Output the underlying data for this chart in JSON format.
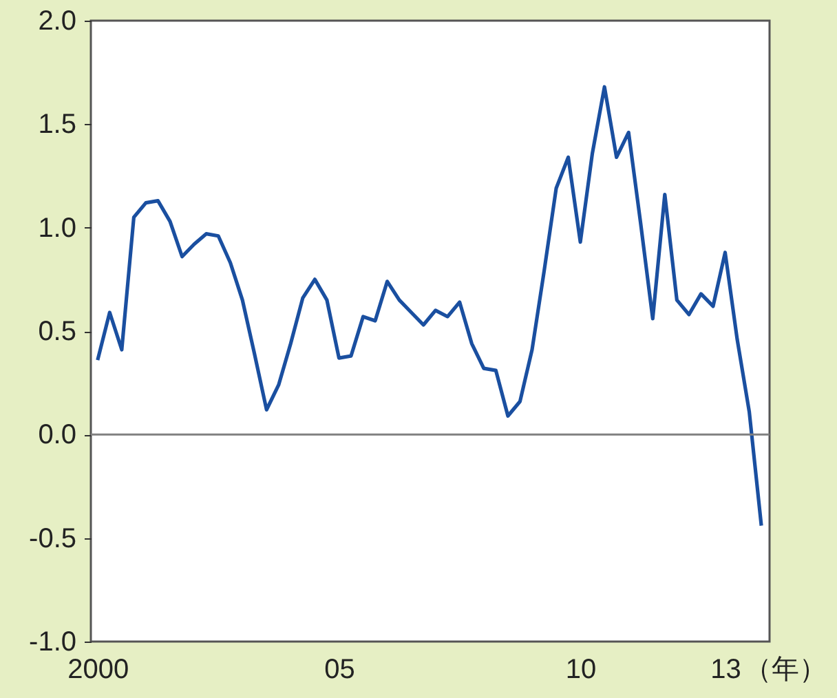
{
  "chart_data": {
    "type": "line",
    "x": [
      2000,
      2000.25,
      2000.5,
      2000.75,
      2001,
      2001.25,
      2001.5,
      2001.75,
      2002,
      2002.25,
      2002.5,
      2002.75,
      2003,
      2003.25,
      2003.5,
      2003.75,
      2004,
      2004.25,
      2004.5,
      2004.75,
      2005,
      2005.25,
      2005.5,
      2005.75,
      2006,
      2006.25,
      2006.5,
      2006.75,
      2007,
      2007.25,
      2007.5,
      2007.75,
      2008,
      2008.25,
      2008.5,
      2008.75,
      2009,
      2009.25,
      2009.5,
      2009.75,
      2010,
      2010.25,
      2010.5,
      2010.75,
      2011,
      2011.25,
      2011.5,
      2011.75,
      2012,
      2012.25,
      2012.5,
      2012.75,
      2013,
      2013.25,
      2013.5,
      2013.75
    ],
    "series": [
      {
        "color": "#1a4fa0",
        "values": [
          0.36,
          0.59,
          0.41,
          1.05,
          1.12,
          1.13,
          1.03,
          0.86,
          0.92,
          0.97,
          0.96,
          0.83,
          0.65,
          0.39,
          0.12,
          0.24,
          0.44,
          0.66,
          0.75,
          0.65,
          0.37,
          0.38,
          0.57,
          0.55,
          0.74,
          0.65,
          0.59,
          0.53,
          0.6,
          0.57,
          0.64,
          0.44,
          0.32,
          0.31,
          0.09,
          0.16,
          0.41,
          0.79,
          1.19,
          1.34,
          0.93,
          1.36,
          1.68,
          1.34,
          1.46,
          1.02,
          0.56,
          1.16,
          0.65,
          0.58,
          0.68,
          0.62,
          0.88,
          0.46,
          0.11,
          -0.44
        ]
      }
    ],
    "xlim": [
      1999.86,
      2013.92
    ],
    "xticks": [
      2000,
      {
        "value": 2005,
        "label": "05"
      },
      {
        "value": 2010,
        "label": "10"
      },
      {
        "value": 2013,
        "label": "13"
      }
    ],
    "xlabel": "（年）",
    "ylim": [
      -1.0,
      2.0
    ],
    "yticks": [
      {
        "value": -1.0,
        "label": "-1.0"
      },
      {
        "value": -0.5,
        "label": "-0.5"
      },
      {
        "value": 0,
        "label": "0.0"
      },
      {
        "value": 0.5,
        "label": "0.5"
      },
      {
        "value": 1.0,
        "label": "1.0"
      },
      {
        "value": 1.5,
        "label": "1.5"
      },
      {
        "value": 2.0,
        "label": "2.0"
      }
    ],
    "ref_lines": [
      {
        "axis": "y",
        "value": 0,
        "color": "#808080"
      }
    ],
    "grid": false,
    "marker": "none",
    "line_style": "solid"
  }
}
